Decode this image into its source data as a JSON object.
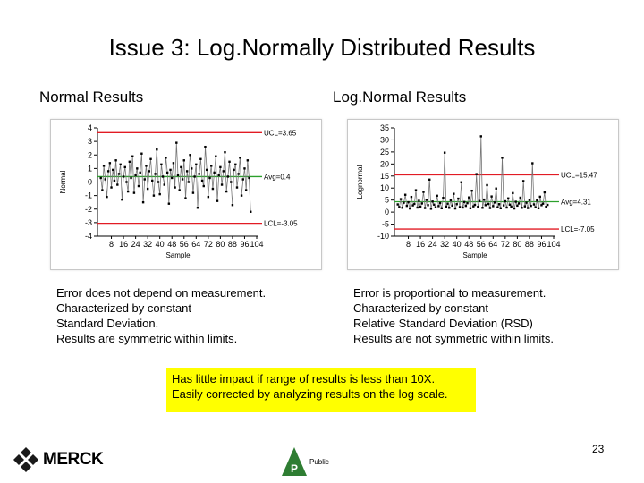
{
  "slide": {
    "title": "Issue 3: Log.Normally Distributed Results",
    "left_heading": "Normal Results",
    "right_heading": "Log.Normal Results",
    "left_description": [
      "Error does not depend on measurement.",
      "Characterized by constant",
      "Standard Deviation.",
      "Results are symmetric within limits."
    ],
    "right_description": [
      "Error is proportional to measurement.",
      "Characterized by constant",
      "Relative Standard Deviation (RSD)",
      "Results are not symmetric within limits."
    ],
    "note_lines": [
      "Has little impact if range of results is less than 10X.",
      "Easily corrected by analyzing results on the log scale."
    ],
    "page_number": "23",
    "logo_text": "MERCK",
    "classification_letter": "P",
    "classification_text": "Public"
  },
  "colors": {
    "limit_line": "#e21b24",
    "average_line": "#2ca02c",
    "data_line": "#777777",
    "marker": "#000000",
    "note_background": "#ffff00",
    "logo_green": "#2e7d32"
  },
  "chart_data": [
    {
      "type": "line",
      "name": "normal",
      "ylabel": "Normal",
      "xlabel": "Sample",
      "ylim": [
        -4,
        4
      ],
      "yticks": [
        "4",
        "3",
        "2",
        "1",
        "0",
        "-1",
        "-2",
        "-3",
        "-4"
      ],
      "xticks": [
        "8",
        "16",
        "24",
        "32",
        "40",
        "48",
        "56",
        "64",
        "72",
        "80",
        "88",
        "96",
        "104"
      ],
      "xlim": [
        0,
        104
      ],
      "grid": false,
      "ucl": {
        "value": 3.65,
        "label": "UCL=3.65"
      },
      "avg": {
        "value": 0.4,
        "label": "Avg=0.4"
      },
      "lcl": {
        "value": -3.05,
        "label": "LCL=-3.05"
      },
      "values": [
        0.3,
        -0.6,
        1.2,
        0.2,
        -1.1,
        0.8,
        1.4,
        -0.4,
        0.9,
        0.1,
        1.6,
        -0.2,
        0.6,
        1.3,
        -1.3,
        0.4,
        1.1,
        0.0,
        -0.7,
        1.5,
        0.3,
        1.9,
        -0.8,
        0.5,
        1.0,
        -0.3,
        0.7,
        2.1,
        -1.5,
        0.2,
        1.2,
        -0.5,
        0.8,
        1.7,
        0.1,
        -1.0,
        0.6,
        2.4,
        0.0,
        -0.9,
        1.3,
        0.4,
        -0.2,
        1.8,
        0.7,
        -1.6,
        0.9,
        0.3,
        1.4,
        -0.4,
        2.9,
        0.5,
        -0.6,
        1.1,
        0.2,
        1.6,
        -1.2,
        0.8,
        0.0,
        2.0,
        1.0,
        -0.8,
        0.4,
        1.3,
        -1.9,
        0.6,
        1.7,
        0.1,
        -0.3,
        2.6,
        0.9,
        -1.1,
        0.3,
        1.2,
        -0.5,
        0.7,
        1.9,
        -1.4,
        0.5,
        1.1,
        -0.2,
        0.8,
        2.2,
        -0.7,
        0.4,
        1.5,
        0.0,
        -1.7,
        0.9,
        1.3,
        -0.4,
        0.6,
        1.8,
        -1.0,
        0.2,
        1.0,
        -0.6,
        1.6,
        0.3,
        -2.2
      ],
      "ylabel_side": "left"
    },
    {
      "type": "line",
      "name": "lognormal",
      "ylabel": "Lognormal",
      "xlabel": "Sample",
      "ylim": [
        -10,
        35
      ],
      "yticks": [
        "35",
        "30",
        "25",
        "20",
        "15",
        "10",
        "5",
        "0",
        "-5",
        "-10"
      ],
      "xticks": [
        "8",
        "16",
        "24",
        "32",
        "40",
        "48",
        "56",
        "64",
        "72",
        "80",
        "88",
        "96",
        "104"
      ],
      "xlim": [
        0,
        104
      ],
      "grid": false,
      "ucl": {
        "value": 15.47,
        "label": "UCL=15.47"
      },
      "avg": {
        "value": 4.31,
        "label": "Avg=4.31"
      },
      "lcl": {
        "value": -7.05,
        "label": "LCL=-7.05"
      },
      "values": [
        3.2,
        2.1,
        5.4,
        1.8,
        3.9,
        7.2,
        2.6,
        4.1,
        1.5,
        6.3,
        2.8,
        3.4,
        9.1,
        1.9,
        4.7,
        2.2,
        3.6,
        8.4,
        1.7,
        5.1,
        2.9,
        13.5,
        1.4,
        4.4,
        3.1,
        2.0,
        6.8,
        2.5,
        3.8,
        1.6,
        5.9,
        24.7,
        2.3,
        3.5,
        1.8,
        4.9,
        2.7,
        7.6,
        1.5,
        3.3,
        5.6,
        2.1,
        12.4,
        1.9,
        4.2,
        2.6,
        3.7,
        6.1,
        1.6,
        8.9,
        2.4,
        3.0,
        15.8,
        2.2,
        4.6,
        31.5,
        1.8,
        5.2,
        2.9,
        11.2,
        3.4,
        1.7,
        6.5,
        2.5,
        4.0,
        9.8,
        2.0,
        3.3,
        1.6,
        22.6,
        2.8,
        4.5,
        1.9,
        5.7,
        3.1,
        2.3,
        7.9,
        1.5,
        4.3,
        2.7,
        3.6,
        6.0,
        1.8,
        12.9,
        2.4,
        3.9,
        1.7,
        5.0,
        2.6,
        20.3,
        3.2,
        2.0,
        4.8,
        1.6,
        6.4,
        2.9,
        3.5,
        8.2,
        2.2,
        3.0
      ],
      "ylabel_side": "left"
    }
  ]
}
